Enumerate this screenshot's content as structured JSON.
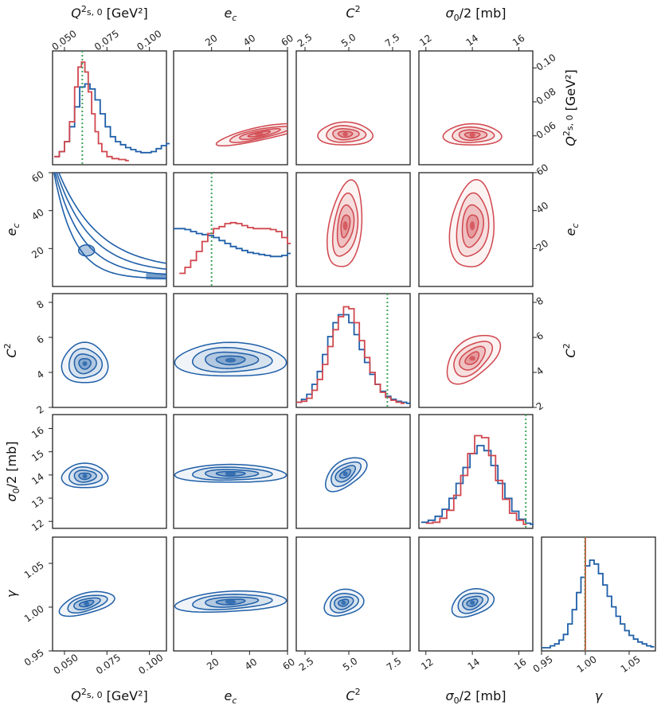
{
  "chart_data": {
    "type": "corner",
    "description_free": true,
    "colors": {
      "posterior_red": "#d0474e",
      "posterior_blue": "#1f5fa8",
      "true_value": "#3fa35a"
    },
    "parameters": [
      {
        "key": "q",
        "label": "Q²s,0 [GeV²]",
        "range": [
          0.043,
          0.11
        ],
        "ticks": [
          0.05,
          0.075,
          0.1
        ],
        "tick_labels": [
          "0.050",
          "0.075",
          "0.100"
        ],
        "right_ticks": [
          0.06,
          0.08,
          0.1
        ],
        "right_tick_labels": [
          "0.06",
          "0.08",
          "0.10"
        ],
        "true_value": 0.0605
      },
      {
        "key": "e",
        "label": "e_c",
        "range": [
          0,
          60
        ],
        "ticks": [
          20,
          40,
          60
        ],
        "tick_labels": [
          "20",
          "40",
          "60"
        ],
        "left_ticks": [
          20,
          40,
          60
        ],
        "true_value": 20
      },
      {
        "key": "c",
        "label": "C²",
        "range": [
          2,
          8.5
        ],
        "ticks": [
          2.5,
          5.0,
          7.5
        ],
        "tick_labels": [
          "2.5",
          "5.0",
          "7.5"
        ],
        "left_ticks": [
          2,
          4,
          6,
          8
        ],
        "true_value": 7.2
      },
      {
        "key": "s",
        "label": "σ0/2 [mb]",
        "range": [
          11.7,
          16.6
        ],
        "ticks": [
          12,
          14,
          16
        ],
        "tick_labels": [
          "12",
          "14",
          "16"
        ],
        "left_ticks": [
          12,
          13,
          14,
          15,
          16
        ],
        "true_value": 16.3
      },
      {
        "key": "g",
        "label": "γ",
        "range": [
          0.95,
          1.08
        ],
        "ticks": [
          0.95,
          1.0,
          1.05
        ],
        "tick_labels": [
          "0.95",
          "1.00",
          "1.05"
        ],
        "left_ticks": [
          0.95,
          1.0,
          1.05
        ],
        "true_value": 1.0
      }
    ],
    "labels": {
      "q": "Q",
      "q_sub": "s, 0",
      "q_unit": " [GeV²]",
      "e": "e",
      "e_sub": "c",
      "c": "C",
      "c_sup": "2",
      "s": "σ",
      "s_sub": "0",
      "s_unit": "/2 [mb]",
      "g": "γ"
    },
    "hist_blue": {
      "q": [
        [
          0.044,
          0.05
        ],
        [
          0.047,
          0.1
        ],
        [
          0.05,
          0.2
        ],
        [
          0.053,
          0.35
        ],
        [
          0.056,
          0.55
        ],
        [
          0.059,
          0.75
        ],
        [
          0.062,
          0.78
        ],
        [
          0.065,
          0.73
        ],
        [
          0.068,
          0.62
        ],
        [
          0.071,
          0.48
        ],
        [
          0.074,
          0.35
        ],
        [
          0.077,
          0.25
        ],
        [
          0.08,
          0.2
        ],
        [
          0.083,
          0.17
        ],
        [
          0.086,
          0.14
        ],
        [
          0.089,
          0.12
        ],
        [
          0.092,
          0.1
        ],
        [
          0.095,
          0.09
        ],
        [
          0.098,
          0.09
        ],
        [
          0.101,
          0.1
        ],
        [
          0.104,
          0.13
        ],
        [
          0.107,
          0.16
        ],
        [
          0.11,
          0.18
        ]
      ],
      "e": [
        [
          0,
          0.55
        ],
        [
          3,
          0.55
        ],
        [
          6,
          0.54
        ],
        [
          9,
          0.52
        ],
        [
          12,
          0.5
        ],
        [
          15,
          0.49
        ],
        [
          18,
          0.48
        ],
        [
          21,
          0.46
        ],
        [
          24,
          0.43
        ],
        [
          27,
          0.4
        ],
        [
          30,
          0.37
        ],
        [
          33,
          0.35
        ],
        [
          36,
          0.33
        ],
        [
          39,
          0.31
        ],
        [
          42,
          0.3
        ],
        [
          45,
          0.29
        ],
        [
          48,
          0.28
        ],
        [
          51,
          0.27
        ],
        [
          54,
          0.27
        ],
        [
          57,
          0.28
        ],
        [
          60,
          0.3
        ]
      ],
      "c": [
        [
          2,
          0.02
        ],
        [
          2.3,
          0.05
        ],
        [
          2.6,
          0.1
        ],
        [
          2.9,
          0.2
        ],
        [
          3.2,
          0.33
        ],
        [
          3.5,
          0.5
        ],
        [
          3.8,
          0.68
        ],
        [
          4.1,
          0.82
        ],
        [
          4.4,
          0.9
        ],
        [
          4.7,
          0.9
        ],
        [
          5.0,
          0.82
        ],
        [
          5.3,
          0.7
        ],
        [
          5.6,
          0.55
        ],
        [
          5.9,
          0.42
        ],
        [
          6.2,
          0.3
        ],
        [
          6.5,
          0.2
        ],
        [
          6.8,
          0.13
        ],
        [
          7.1,
          0.08
        ],
        [
          7.4,
          0.05
        ],
        [
          7.7,
          0.03
        ],
        [
          8.0,
          0.02
        ],
        [
          8.3,
          0.01
        ]
      ],
      "s": [
        [
          11.8,
          0.03
        ],
        [
          12.1,
          0.05
        ],
        [
          12.4,
          0.09
        ],
        [
          12.7,
          0.16
        ],
        [
          13.0,
          0.27
        ],
        [
          13.3,
          0.42
        ],
        [
          13.6,
          0.58
        ],
        [
          13.9,
          0.72
        ],
        [
          14.2,
          0.8
        ],
        [
          14.5,
          0.75
        ],
        [
          14.8,
          0.6
        ],
        [
          15.1,
          0.42
        ],
        [
          15.4,
          0.27
        ],
        [
          15.7,
          0.14
        ],
        [
          16.0,
          0.06
        ],
        [
          16.3,
          0.02
        ],
        [
          16.5,
          0.01
        ]
      ],
      "g": [
        [
          0.95,
          0.0
        ],
        [
          0.96,
          0.02
        ],
        [
          0.965,
          0.04
        ],
        [
          0.97,
          0.08
        ],
        [
          0.975,
          0.14
        ],
        [
          0.98,
          0.25
        ],
        [
          0.985,
          0.4
        ],
        [
          0.99,
          0.58
        ],
        [
          0.995,
          0.74
        ],
        [
          1.0,
          0.86
        ],
        [
          1.005,
          0.92
        ],
        [
          1.01,
          0.88
        ],
        [
          1.015,
          0.78
        ],
        [
          1.02,
          0.66
        ],
        [
          1.025,
          0.54
        ],
        [
          1.03,
          0.43
        ],
        [
          1.035,
          0.33
        ],
        [
          1.04,
          0.25
        ],
        [
          1.045,
          0.18
        ],
        [
          1.05,
          0.13
        ],
        [
          1.055,
          0.09
        ],
        [
          1.06,
          0.06
        ],
        [
          1.065,
          0.04
        ],
        [
          1.07,
          0.02
        ],
        [
          1.075,
          0.01
        ]
      ]
    },
    "hist_red": {
      "q": [
        [
          0.044,
          0.05
        ],
        [
          0.047,
          0.1
        ],
        [
          0.05,
          0.2
        ],
        [
          0.053,
          0.4
        ],
        [
          0.056,
          0.75
        ],
        [
          0.058,
          0.95
        ],
        [
          0.06,
          1.0
        ],
        [
          0.062,
          0.9
        ],
        [
          0.064,
          0.7
        ],
        [
          0.066,
          0.48
        ],
        [
          0.068,
          0.3
        ],
        [
          0.07,
          0.18
        ],
        [
          0.072,
          0.1
        ],
        [
          0.075,
          0.05
        ],
        [
          0.078,
          0.03
        ],
        [
          0.082,
          0.02
        ],
        [
          0.086,
          0.01
        ]
      ],
      "e": [
        [
          3,
          0.1
        ],
        [
          6,
          0.16
        ],
        [
          9,
          0.23
        ],
        [
          12,
          0.32
        ],
        [
          15,
          0.42
        ],
        [
          18,
          0.5
        ],
        [
          21,
          0.55
        ],
        [
          24,
          0.57
        ],
        [
          27,
          0.6
        ],
        [
          30,
          0.61
        ],
        [
          33,
          0.6
        ],
        [
          36,
          0.58
        ],
        [
          39,
          0.56
        ],
        [
          42,
          0.55
        ],
        [
          45,
          0.55
        ],
        [
          48,
          0.55
        ],
        [
          51,
          0.54
        ],
        [
          54,
          0.52
        ],
        [
          57,
          0.46
        ],
        [
          60,
          0.4
        ]
      ],
      "c": [
        [
          2,
          0.02
        ],
        [
          2.3,
          0.03
        ],
        [
          2.6,
          0.06
        ],
        [
          2.9,
          0.14
        ],
        [
          3.2,
          0.25
        ],
        [
          3.5,
          0.4
        ],
        [
          3.8,
          0.58
        ],
        [
          4.1,
          0.75
        ],
        [
          4.4,
          0.88
        ],
        [
          4.7,
          0.98
        ],
        [
          5.0,
          0.96
        ],
        [
          5.3,
          0.82
        ],
        [
          5.6,
          0.64
        ],
        [
          5.9,
          0.47
        ],
        [
          6.2,
          0.32
        ],
        [
          6.5,
          0.2
        ],
        [
          6.8,
          0.12
        ],
        [
          7.1,
          0.07
        ],
        [
          7.4,
          0.04
        ],
        [
          7.7,
          0.02
        ],
        [
          8.0,
          0.01
        ]
      ],
      "s": [
        [
          12.0,
          0.02
        ],
        [
          12.3,
          0.03
        ],
        [
          12.6,
          0.07
        ],
        [
          12.9,
          0.15
        ],
        [
          13.2,
          0.3
        ],
        [
          13.5,
          0.5
        ],
        [
          13.8,
          0.72
        ],
        [
          14.1,
          0.9
        ],
        [
          14.4,
          0.88
        ],
        [
          14.7,
          0.7
        ],
        [
          15.0,
          0.45
        ],
        [
          15.3,
          0.26
        ],
        [
          15.6,
          0.12
        ],
        [
          15.9,
          0.05
        ],
        [
          16.2,
          0.01
        ]
      ]
    },
    "red_contours": {
      "qe": {
        "cx": 45,
        "cy": 0.061,
        "rx": 22,
        "ry": 0.004,
        "rot": -12
      },
      "qc": {
        "cx": 4.8,
        "cy": 0.061,
        "rx": 1.5,
        "ry": 0.007,
        "rot": 0
      },
      "qs": {
        "cx": 14.0,
        "cy": 0.0605,
        "rx": 1.2,
        "ry": 0.0065,
        "rot": 0
      },
      "ec": {
        "cx": 4.8,
        "cy": 32,
        "rx": 0.9,
        "ry": 24,
        "rot": 8
      },
      "es": {
        "cx": 14.0,
        "cy": 32,
        "rx": 0.9,
        "ry": 24,
        "rot": 6
      },
      "cs": {
        "cx": 14.0,
        "cy": 4.8,
        "rx": 1.3,
        "ry": 1.05,
        "rot": -40
      }
    },
    "blue_contours": {
      "qc": {
        "cx": 0.062,
        "cy": 4.5,
        "rx": 0.013,
        "ry": 1.2,
        "rot": 0
      },
      "qs": {
        "cx": 0.062,
        "cy": 13.95,
        "rx": 0.013,
        "ry": 0.55,
        "rot": 0
      },
      "qg": {
        "cx": 0.063,
        "cy": 1.004,
        "rx": 0.016,
        "ry": 0.012,
        "rot": -15
      },
      "ec": {
        "cx": 30,
        "cy": 4.7,
        "rx": 28,
        "ry": 1.0,
        "rot": 0
      },
      "es": {
        "cx": 30,
        "cy": 14.05,
        "rx": 28,
        "ry": 0.4,
        "rot": 0
      },
      "eg": {
        "cx": 30,
        "cy": 1.006,
        "rx": 28,
        "ry": 0.012,
        "rot": -3
      },
      "cs": {
        "cx": 4.8,
        "cy": 14.05,
        "rx": 1.3,
        "ry": 0.55,
        "rot": -35
      },
      "cg": {
        "cx": 4.7,
        "cy": 1.005,
        "rx": 1.1,
        "ry": 0.015,
        "rot": -15
      },
      "sg": {
        "cx": 14.0,
        "cy": 1.005,
        "rx": 0.9,
        "ry": 0.015,
        "rot": -20
      }
    }
  }
}
